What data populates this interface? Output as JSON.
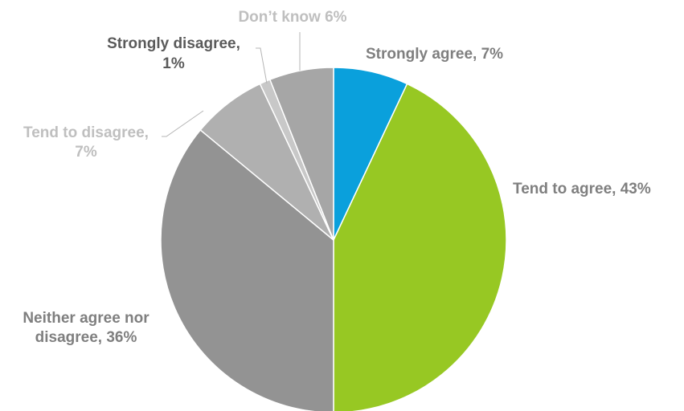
{
  "chart_data": {
    "type": "pie",
    "title": "",
    "start_angle_deg": 0,
    "direction": "clockwise",
    "slices": [
      {
        "name": "Strongly agree",
        "value": 7,
        "color": "#0aa0dc",
        "label_lines": [
          "Strongly agree, 7%"
        ],
        "label_color": "#7f7f7f"
      },
      {
        "name": "Tend to agree",
        "value": 43,
        "color": "#97c823",
        "label_lines": [
          "Tend to agree, 43%"
        ],
        "label_color": "#7f7f7f"
      },
      {
        "name": "Neither agree nor disagree",
        "value": 36,
        "color": "#939393",
        "label_lines": [
          "Neither agree nor",
          "disagree, 36%"
        ],
        "label_color": "#7f7f7f"
      },
      {
        "name": "Tend to disagree",
        "value": 7,
        "color": "#b0b0b0",
        "label_lines": [
          "Tend to disagree,",
          "7%"
        ],
        "label_color": "#bfbfbf"
      },
      {
        "name": "Strongly disagree",
        "value": 1,
        "color": "#c8c8c8",
        "label_lines": [
          "Strongly disagree,",
          "1%"
        ],
        "label_color": "#5a5a5a"
      },
      {
        "name": "Don’t know",
        "value": 6,
        "color": "#a6a6a6",
        "label_lines": [
          "Don’t know 6%"
        ],
        "label_color": "#bfbfbf"
      }
    ],
    "legend": "none"
  }
}
